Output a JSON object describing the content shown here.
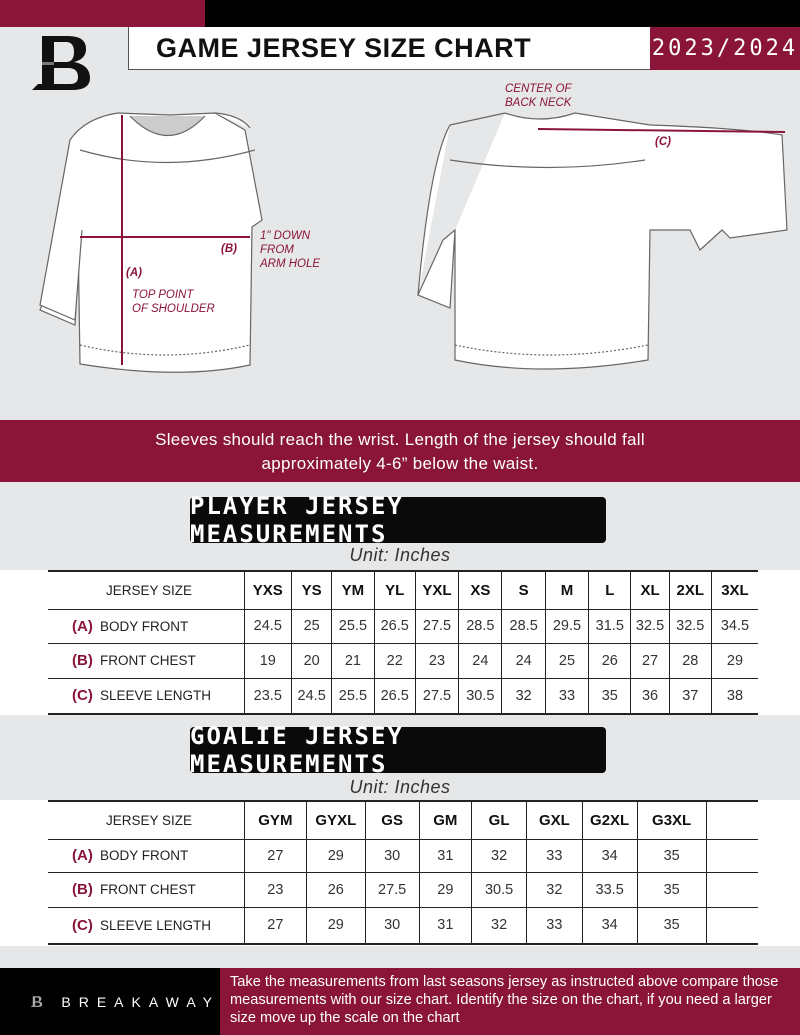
{
  "header": {
    "title": "GAME JERSEY SIZE CHART",
    "season": "2023/2024",
    "logo_letter": "B"
  },
  "diagram": {
    "center_back_neck": "CENTER OF\nBACK NECK",
    "label_a": "(A)",
    "label_b": "(B)",
    "label_c": "(C)",
    "one_inch_down": "1\" DOWN\nFROM\nARM HOLE",
    "top_point": "TOP POINT\nOF SHOULDER"
  },
  "banner": {
    "line1": "Sleeves should reach the wrist. Length of the jersey should fall",
    "line2": "approximately 4-6” below the waist."
  },
  "player": {
    "title": "PLAYER JERSEY MEASUREMENTS",
    "unit": "Unit: Inches",
    "size_header": "JERSEY SIZE",
    "sizes": [
      "YXS",
      "YS",
      "YM",
      "YL",
      "YXL",
      "XS",
      "S",
      "M",
      "L",
      "XL",
      "2XL",
      "3XL"
    ],
    "rows": [
      {
        "key": "(A)",
        "label": "BODY FRONT",
        "values": [
          "24.5",
          "25",
          "25.5",
          "26.5",
          "27.5",
          "28.5",
          "28.5",
          "29.5",
          "31.5",
          "32.5",
          "32.5",
          "34.5"
        ]
      },
      {
        "key": "(B)",
        "label": "FRONT CHEST",
        "values": [
          "19",
          "20",
          "21",
          "22",
          "23",
          "24",
          "24",
          "25",
          "26",
          "27",
          "28",
          "29"
        ]
      },
      {
        "key": "(C)",
        "label": "SLEEVE LENGTH",
        "values": [
          "23.5",
          "24.5",
          "25.5",
          "26.5",
          "27.5",
          "30.5",
          "32",
          "33",
          "35",
          "36",
          "37",
          "38"
        ]
      }
    ]
  },
  "goalie": {
    "title": "GOALIE JERSEY MEASUREMENTS",
    "unit": "Unit: Inches",
    "size_header": "JERSEY SIZE",
    "sizes": [
      "GYM",
      "GYXL",
      "GS",
      "GM",
      "GL",
      "GXL",
      "G2XL",
      "G3XL",
      ""
    ],
    "rows": [
      {
        "key": "(A)",
        "label": "BODY FRONT",
        "values": [
          "27",
          "29",
          "30",
          "31",
          "32",
          "33",
          "34",
          "35",
          ""
        ]
      },
      {
        "key": "(B)",
        "label": "FRONT CHEST",
        "values": [
          "23",
          "26",
          "27.5",
          "29",
          "30.5",
          "32",
          "33.5",
          "35",
          ""
        ]
      },
      {
        "key": "(C)",
        "label": "SLEEVE LENGTH",
        "values": [
          "27",
          "29",
          "30",
          "31",
          "32",
          "33",
          "34",
          "35",
          ""
        ]
      }
    ]
  },
  "footer": {
    "brand": "BREAKAWAY",
    "note": "Take the measurements from last seasons jersey as instructed above compare those measurements  with our size chart. Identify the size on the chart, if you need a larger size move up the scale on the chart"
  },
  "colors": {
    "accent": "#8a1538",
    "dark": "#000000",
    "background": "#e6e7e8"
  }
}
